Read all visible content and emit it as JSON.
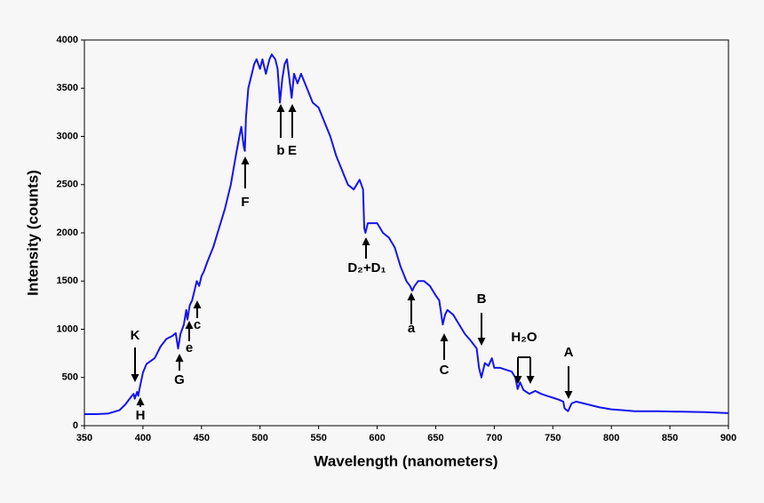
{
  "chart_data": {
    "type": "line",
    "x_label": "Wavelength (nanometers)",
    "y_label": "Intensity (counts)",
    "xlim": [
      350,
      900
    ],
    "xticks": [
      350,
      400,
      450,
      500,
      550,
      600,
      650,
      700,
      750,
      800,
      850,
      900
    ],
    "ylim": [
      0,
      4000
    ],
    "yticks": [
      0,
      500,
      1000,
      1500,
      2000,
      2500,
      3000,
      3500,
      4000
    ],
    "grid": false,
    "series": [
      {
        "color": "#1414ee",
        "x": [
          350,
          360,
          370,
          380,
          385,
          390,
          392,
          393,
          395,
          396,
          397,
          400,
          403,
          410,
          415,
          420,
          425,
          428,
          430,
          432,
          435,
          437,
          438,
          440,
          442,
          444,
          446,
          448,
          450,
          452,
          455,
          460,
          465,
          470,
          475,
          480,
          484,
          486,
          487,
          488,
          490,
          493,
          495,
          497,
          500,
          502,
          505,
          508,
          510,
          513,
          515,
          517,
          519,
          521,
          523,
          525,
          527,
          529,
          532,
          535,
          540,
          545,
          550,
          555,
          560,
          565,
          570,
          575,
          580,
          585,
          588,
          589,
          590,
          592,
          595,
          600,
          605,
          610,
          615,
          620,
          625,
          628,
          630,
          632,
          635,
          640,
          645,
          650,
          653,
          656,
          658,
          660,
          665,
          670,
          675,
          680,
          685,
          687,
          689,
          692,
          695,
          698,
          700,
          705,
          710,
          715,
          718,
          720,
          722,
          725,
          730,
          735,
          740,
          745,
          750,
          755,
          759,
          760,
          763,
          766,
          770,
          780,
          790,
          800,
          810,
          820,
          840,
          860,
          880,
          900
        ],
        "values": [
          120,
          120,
          125,
          160,
          220,
          300,
          330,
          280,
          350,
          310,
          380,
          550,
          640,
          700,
          820,
          900,
          930,
          960,
          800,
          950,
          1050,
          1200,
          1100,
          1250,
          1300,
          1400,
          1500,
          1450,
          1550,
          1600,
          1700,
          1850,
          2050,
          2250,
          2500,
          2850,
          3100,
          2900,
          2850,
          3200,
          3500,
          3650,
          3750,
          3800,
          3700,
          3800,
          3650,
          3800,
          3850,
          3800,
          3700,
          3350,
          3600,
          3750,
          3800,
          3600,
          3400,
          3650,
          3550,
          3650,
          3500,
          3350,
          3300,
          3150,
          3000,
          2800,
          2650,
          2500,
          2450,
          2550,
          2450,
          2050,
          2000,
          2100,
          2100,
          2100,
          2000,
          1950,
          1850,
          1650,
          1500,
          1450,
          1400,
          1450,
          1500,
          1500,
          1450,
          1350,
          1300,
          1050,
          1150,
          1200,
          1150,
          1050,
          950,
          880,
          800,
          600,
          500,
          650,
          620,
          700,
          600,
          600,
          580,
          560,
          500,
          380,
          450,
          370,
          330,
          360,
          330,
          310,
          290,
          270,
          250,
          180,
          150,
          230,
          250,
          220,
          190,
          170,
          160,
          150,
          150,
          145,
          140,
          130
        ]
      }
    ],
    "annotations": [
      "K",
      "H",
      "G",
      "e",
      "c",
      "F",
      "b",
      "E",
      "D₂+D₁",
      "a",
      "C",
      "B",
      "H₂O",
      "A"
    ]
  }
}
